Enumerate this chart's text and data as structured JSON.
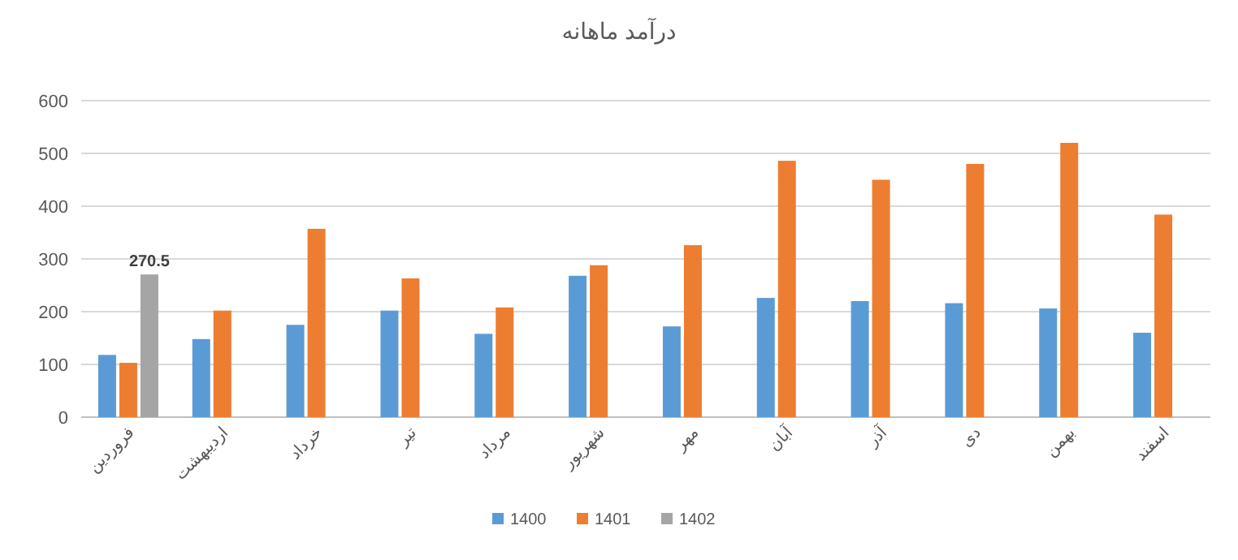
{
  "chart_data": {
    "type": "bar",
    "title": "درآمد ماهانه",
    "categories": [
      "فروردین",
      "اردیبهشت",
      "خرداد",
      "تیر",
      "مرداد",
      "شهریور",
      "مهر",
      "آبان",
      "آذر",
      "دی",
      "بهمن",
      "اسفند"
    ],
    "series": [
      {
        "name": "1400",
        "color": "#5b9bd5",
        "values": [
          118,
          148,
          175,
          202,
          158,
          268,
          172,
          226,
          220,
          216,
          206,
          160
        ]
      },
      {
        "name": "1401",
        "color": "#ed7d31",
        "values": [
          103,
          202,
          357,
          263,
          208,
          288,
          326,
          486,
          450,
          480,
          520,
          384
        ]
      },
      {
        "name": "1402",
        "color": "#a5a5a5",
        "values": [
          270.5,
          null,
          null,
          null,
          null,
          null,
          null,
          null,
          null,
          null,
          null,
          null
        ],
        "value_labels": [
          "270.5",
          null,
          null,
          null,
          null,
          null,
          null,
          null,
          null,
          null,
          null,
          null
        ]
      }
    ],
    "ylim": [
      0,
      600
    ],
    "yticks": [
      0,
      100,
      200,
      300,
      400,
      500,
      600
    ],
    "grid": "y",
    "legend": "bottom"
  }
}
